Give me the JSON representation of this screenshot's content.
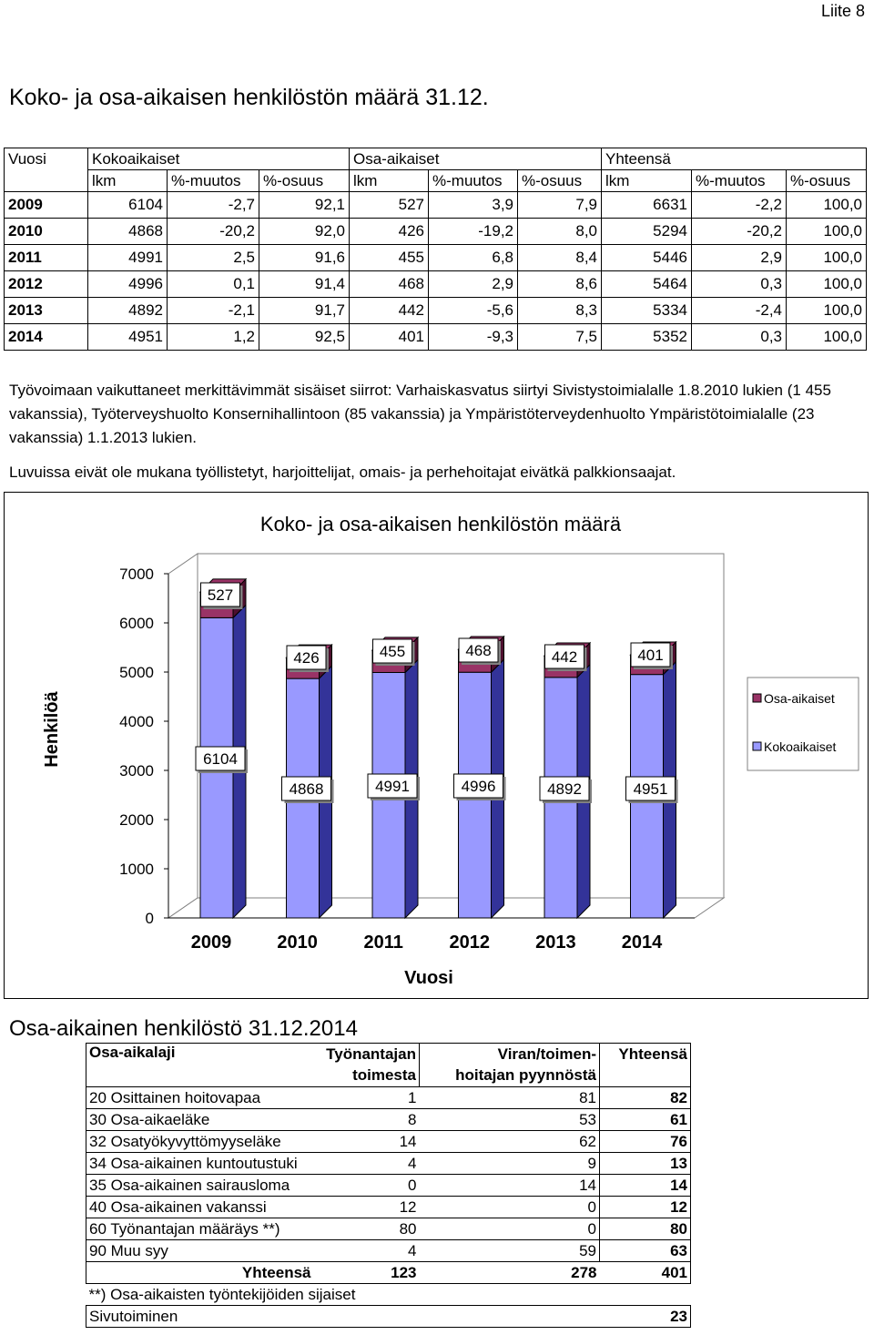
{
  "appendix": "Liite 8",
  "title": "Koko- ja osa-aikaisen henkilöstön määrä 31.12.",
  "table1": {
    "h_year": "Vuosi",
    "groups": [
      "Kokoaikaiset",
      "Osa-aikaiset",
      "Yhteensä"
    ],
    "subheaders": [
      "lkm",
      "%-muutos",
      "%-osuus",
      "lkm",
      "%-muutos",
      "%-osuus",
      "lkm",
      "%-muutos",
      "%-osuus"
    ],
    "rows": [
      [
        "2009",
        "6104",
        "-2,7",
        "92,1",
        "527",
        "3,9",
        "7,9",
        "6631",
        "-2,2",
        "100,0"
      ],
      [
        "2010",
        "4868",
        "-20,2",
        "92,0",
        "426",
        "-19,2",
        "8,0",
        "5294",
        "-20,2",
        "100,0"
      ],
      [
        "2011",
        "4991",
        "2,5",
        "91,6",
        "455",
        "6,8",
        "8,4",
        "5446",
        "2,9",
        "100,0"
      ],
      [
        "2012",
        "4996",
        "0,1",
        "91,4",
        "468",
        "2,9",
        "8,6",
        "5464",
        "0,3",
        "100,0"
      ],
      [
        "2013",
        "4892",
        "-2,1",
        "91,7",
        "442",
        "-5,6",
        "8,3",
        "5334",
        "-2,4",
        "100,0"
      ],
      [
        "2014",
        "4951",
        "1,2",
        "92,5",
        "401",
        "-9,3",
        "7,5",
        "5352",
        "0,3",
        "100,0"
      ]
    ]
  },
  "note1": "Työvoimaan vaikuttaneet merkittävimmät sisäiset siirrot: Varhaiskasvatus siirtyi Sivistystoimialalle 1.8.2010 lukien (1 455 vakanssia), Työterveyshuolto Konsernihallintoon (85 vakanssia) ja Ympäristöterveydenhuolto Ympäristötoimialalle (23 vakanssia) 1.1.2013 lukien.",
  "note2": "Luvuissa eivät ole mukana työllistetyt, harjoittelijat, omais- ja perhehoitajat eivätkä palkkionsaajat.",
  "chart_data": {
    "type": "bar",
    "stacked": true,
    "three_d": true,
    "title": "Koko- ja osa-aikaisen henkilöstön määrä",
    "xlabel": "Vuosi",
    "ylabel": "Henkilöä",
    "categories": [
      "2009",
      "2010",
      "2011",
      "2012",
      "2013",
      "2014"
    ],
    "series": [
      {
        "name": "Kokoaikaiset",
        "values": [
          6104,
          4868,
          4991,
          4996,
          4892,
          4951
        ],
        "color": "#9999ff"
      },
      {
        "name": "Osa-aikaiset",
        "values": [
          527,
          426,
          455,
          468,
          442,
          401
        ],
        "color": "#993366"
      }
    ],
    "yticks": [
      "0",
      "1000",
      "2000",
      "3000",
      "4000",
      "5000",
      "6000",
      "7000"
    ],
    "ylim": [
      0,
      7000
    ],
    "legend": "right",
    "grid": false
  },
  "table2": {
    "title": "Osa-aikainen henkilöstö 31.12.2014",
    "headers": {
      "type": "Osa-aikalaji",
      "employer_1": "Työnantajan",
      "employer_2": "toimesta",
      "request_1": "Viran/toimen-",
      "request_2": "hoitajan pyynnöstä",
      "total": "Yhteensä"
    },
    "rows": [
      [
        "20 Osittainen hoitovapaa",
        "1",
        "81",
        "82"
      ],
      [
        "30 Osa-aikaeläke",
        "8",
        "53",
        "61"
      ],
      [
        "32 Osatyökyvyttömyyseläke",
        "14",
        "62",
        "76"
      ],
      [
        "34 Osa-aikainen kuntoutustuki",
        "4",
        "9",
        "13"
      ],
      [
        "35 Osa-aikainen sairausloma",
        "0",
        "14",
        "14"
      ],
      [
        "40 Osa-aikainen vakanssi",
        "12",
        "0",
        "12"
      ],
      [
        "60 Työnantajan määräys **)",
        "80",
        "0",
        "80"
      ],
      [
        "90 Muu syy",
        "4",
        "59",
        "63"
      ]
    ],
    "total_row": [
      "Yhteensä",
      "123",
      "278",
      "401"
    ],
    "footnote": "**) Osa-aikaisten työntekijöiden sijaiset",
    "side_job": [
      "Sivutoiminen",
      "23"
    ]
  }
}
